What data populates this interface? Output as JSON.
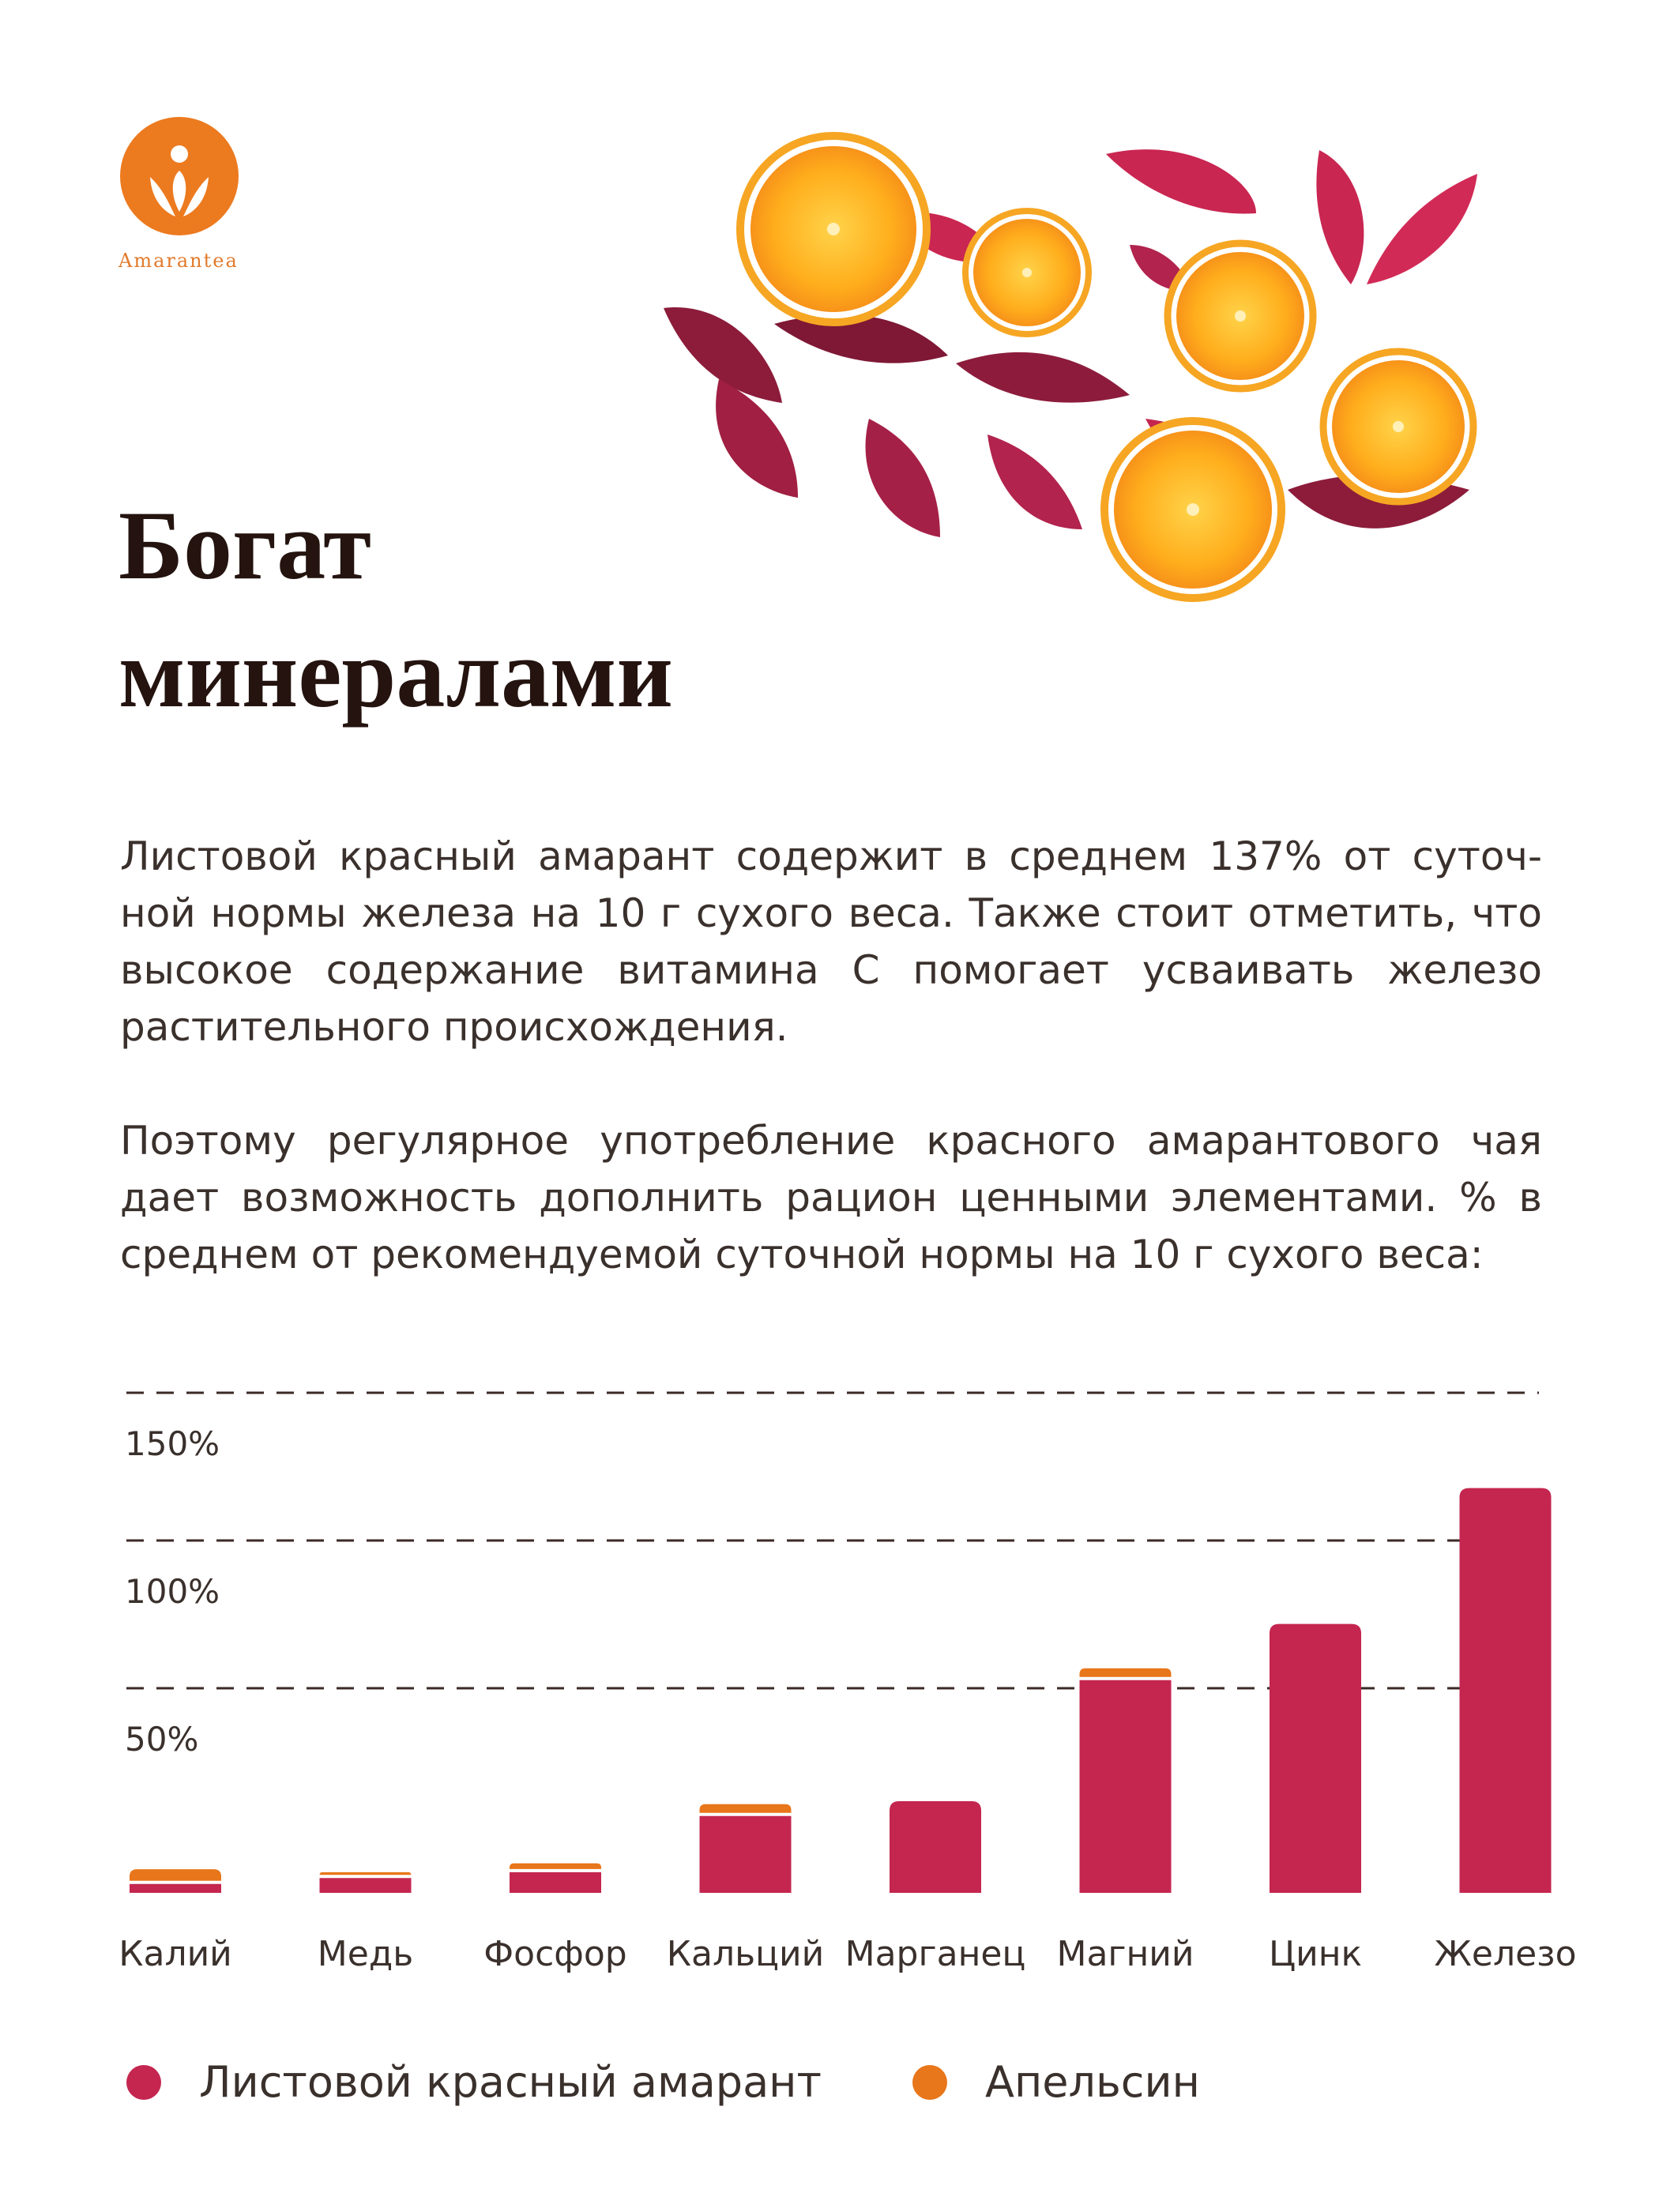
{
  "brand": {
    "name": "Amarantea"
  },
  "heading": {
    "line1": "Богат",
    "line2": "минералами"
  },
  "paragraphs": {
    "p1": "Листовой красный амарант содержит в среднем 137% от суточ-ной нормы железа на 10 г сухого веса. Также стоит отметить, что высокое содержание витамина С помогает усваивать железо растительного происхождения.",
    "p2": "Поэтому регулярное употребление красного амарантового чая дает возможность дополнить рацион ценными элементами. % в среднем от рекомендуемой суточной нормы на 10 г сухого веса:"
  },
  "colors": {
    "amaranth": "#c4264f",
    "orange": "#e8761a",
    "logo": "#ec7a1f",
    "title": "#24130f"
  },
  "chart_data": {
    "type": "bar",
    "title": "",
    "xlabel": "",
    "ylabel": "",
    "stacked": true,
    "categories": [
      "Калий",
      "Медь",
      "Фосфор",
      "Кальций",
      "Марганец",
      "Магний",
      "Цинк",
      "Железо"
    ],
    "series": [
      {
        "name": "Листовой красный амарант",
        "color": "#c4264f",
        "values": [
          3,
          5,
          7,
          26,
          31,
          72,
          91,
          137
        ]
      },
      {
        "name": "Апельсин",
        "color": "#e8761a",
        "values": [
          5,
          2,
          3,
          4,
          0,
          4,
          0,
          0
        ]
      }
    ],
    "yticks": [
      50,
      100,
      150
    ],
    "ytick_labels": [
      "50%",
      "100%",
      "150%"
    ],
    "ylim": [
      0,
      150
    ],
    "grid": true,
    "legend_position": "bottom"
  }
}
